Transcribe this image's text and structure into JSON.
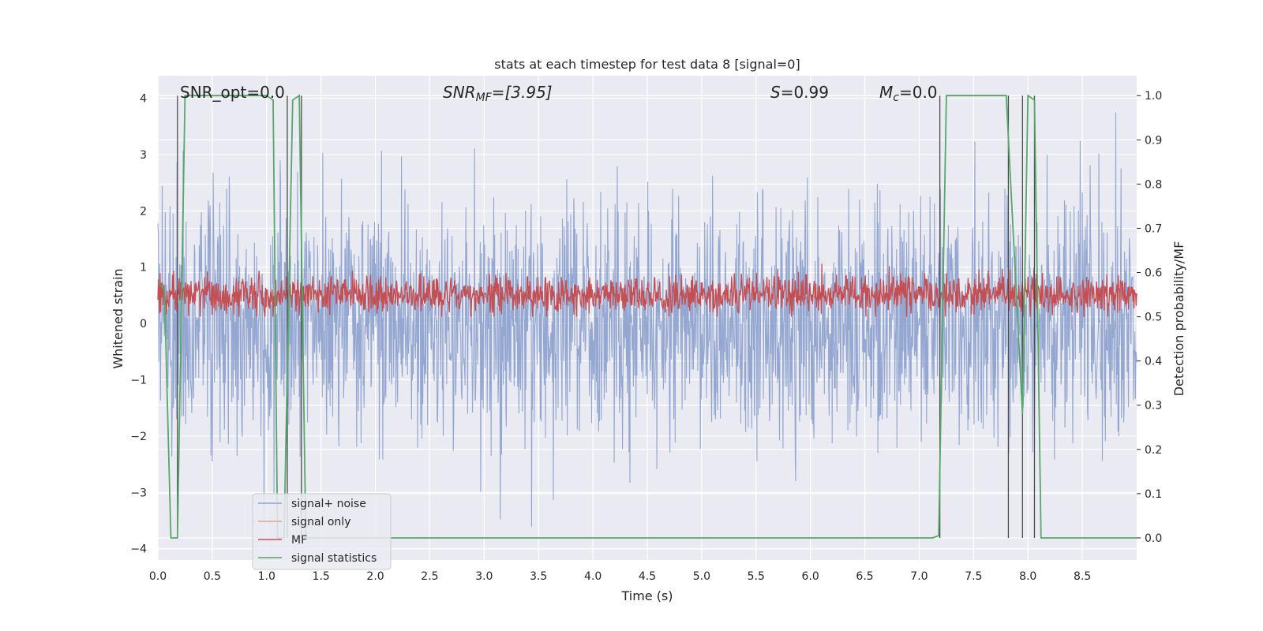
{
  "chart_data": {
    "type": "line",
    "title": "stats at each timestep for test data 8 [signal=0]",
    "xlabel": "Time (s)",
    "ylabel_left": "Whitened strain",
    "ylabel_right": "Detection probability/MF",
    "xlim": [
      0.0,
      9.0
    ],
    "ylim_left": [
      -4.2,
      4.4
    ],
    "ylim_right": [
      -0.05,
      1.045
    ],
    "x_ticks": [
      "0.0",
      "0.5",
      "1.0",
      "1.5",
      "2.0",
      "2.5",
      "3.0",
      "3.5",
      "4.0",
      "4.5",
      "5.0",
      "5.5",
      "6.0",
      "6.5",
      "7.0",
      "7.5",
      "8.0",
      "8.5"
    ],
    "y_ticks_left": [
      "4",
      "3",
      "2",
      "1",
      "0",
      "−1",
      "−2",
      "−3",
      "−4"
    ],
    "y_ticks_right": [
      "1.0",
      "0.9",
      "0.8",
      "0.7",
      "0.6",
      "0.5",
      "0.4",
      "0.3",
      "0.2",
      "0.1",
      "0.0"
    ],
    "grid": true,
    "legend_placement": "lower-left",
    "annotations": {
      "snr_opt": "SNR_opt=0.0",
      "snr_mf_sym": "SNR",
      "snr_mf_sub": "MF",
      "snr_mf_val": "=[3.95]",
      "s_sym": "S",
      "s_val": "=0.99",
      "mc_sym": "M",
      "mc_sub": "c",
      "mc_val": "=0.0"
    },
    "series": [
      {
        "name": "signal+ noise",
        "color": "#8fa3cf",
        "axis": "left",
        "description_stats": {
          "typical_range": [
            -2.5,
            2.5
          ],
          "max": 3.95,
          "min": -3.9,
          "sample_dt": 0.004
        }
      },
      {
        "name": "signal only",
        "color": "#e8a48a",
        "axis": "left",
        "values": []
      },
      {
        "name": "MF",
        "color": "#c44e52",
        "axis": "right",
        "description_stats": {
          "typical_range": [
            0.5,
            0.62
          ],
          "max": 0.62,
          "min": 0.5
        }
      },
      {
        "name": "signal statistics",
        "color": "#55a868",
        "axis": "right",
        "x": [
          0.0,
          0.06,
          0.12,
          0.18,
          0.25,
          1.0,
          1.06,
          1.1,
          1.16,
          1.24,
          1.3,
          1.36,
          1.44,
          7.12,
          7.18,
          7.25,
          7.8,
          7.95,
          8.0,
          8.06,
          8.12,
          9.0
        ],
        "y": [
          0.58,
          0.56,
          0.0,
          0.0,
          1.0,
          1.0,
          0.99,
          0.0,
          0.0,
          0.99,
          1.0,
          0.0,
          0.0,
          0.0,
          0.005,
          1.0,
          1.0,
          0.28,
          1.0,
          0.99,
          0.0,
          0.0
        ]
      }
    ],
    "vertical_lines": {
      "color": "#4c4c4c",
      "x": [
        0.18,
        1.19,
        1.32,
        7.19,
        7.82,
        7.95,
        8.06
      ]
    }
  }
}
